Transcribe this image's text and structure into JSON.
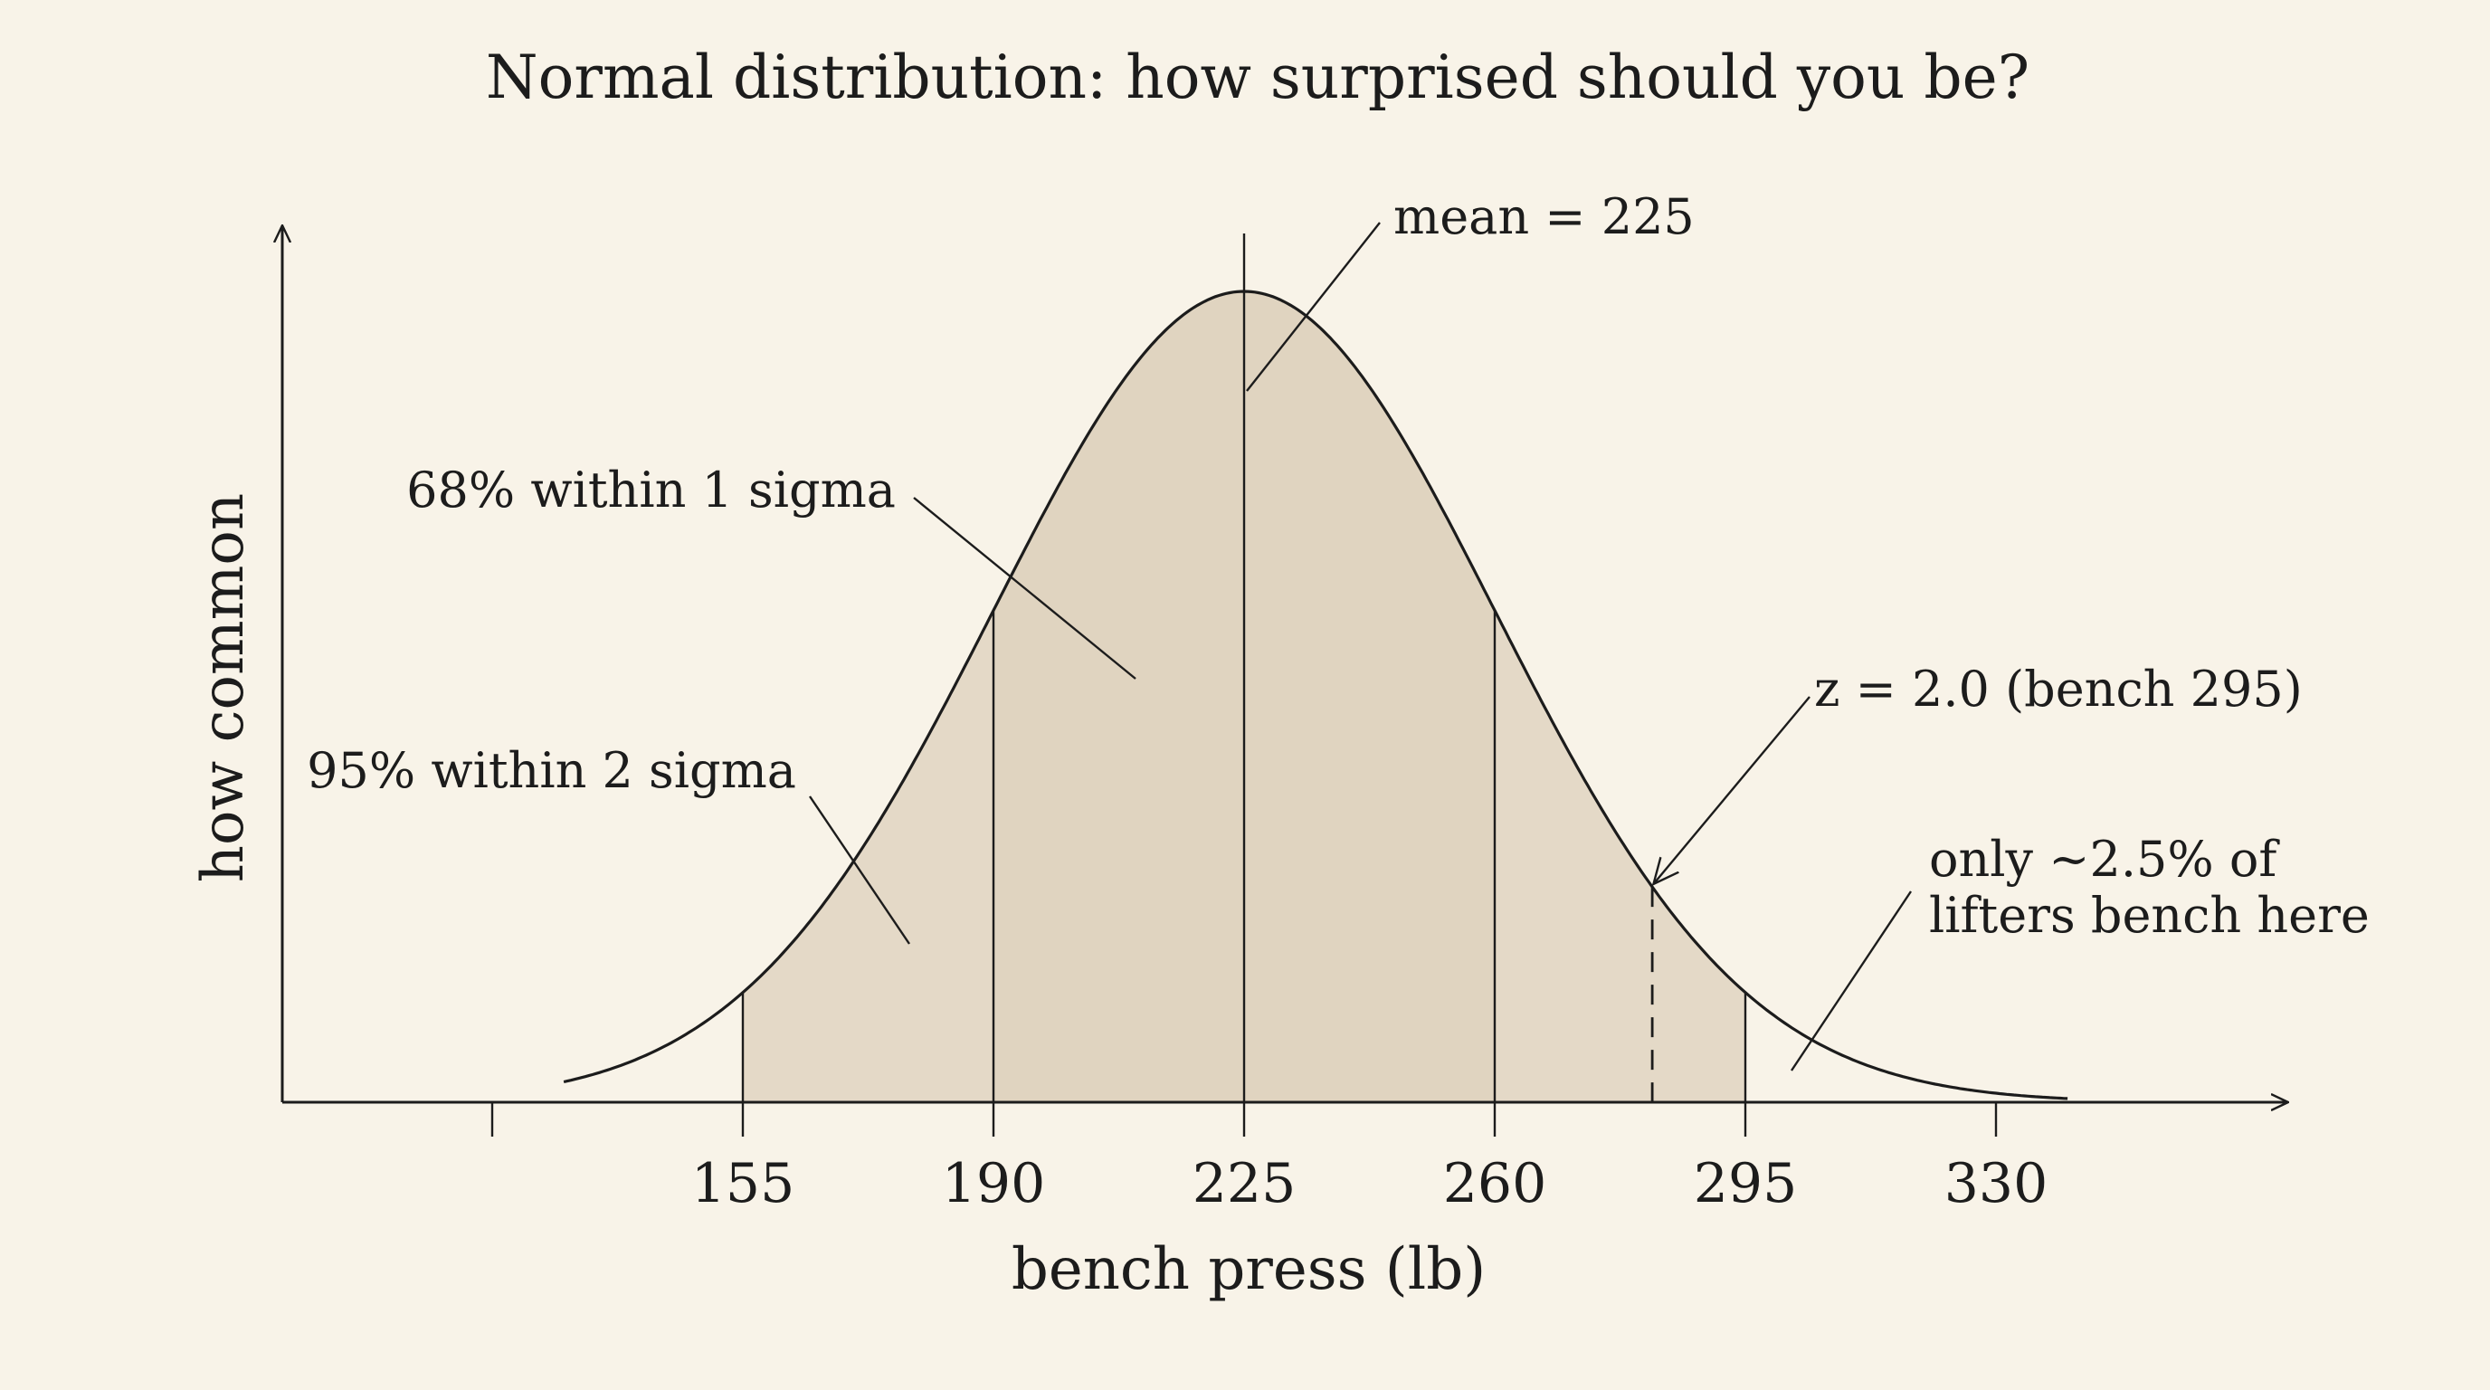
{
  "chart_data": {
    "type": "area",
    "title": "Normal distribution: how surprised should you be?",
    "xlabel": "bench press (lb)",
    "ylabel": "how common",
    "mean": 225,
    "sd": 35,
    "xlim": [
      110,
      350
    ],
    "tick_labels": [
      "155",
      "190",
      "225",
      "260",
      "295",
      "330"
    ],
    "tick_values": [
      155,
      190,
      225,
      260,
      295,
      330
    ],
    "unlabeled_tick_values": [
      120
    ],
    "shaded_range": [
      155,
      295
    ],
    "sigma_lines": [
      155,
      190,
      225,
      260,
      295
    ],
    "marked_value": 282,
    "annotations": {
      "mean": "mean = 225",
      "one_sigma": "68% within 1 sigma",
      "two_sigma": "95% within 2 sigma",
      "z_score": "z = 2.0 (bench 295)",
      "tail_line1": "only ~2.5% of",
      "tail_line2": "lifters bench here"
    },
    "colors": {
      "background": "#f8f3e8",
      "fill": "#e4d9c7",
      "fill_inner": "#dccfba",
      "line": "#1c1c1c"
    }
  }
}
